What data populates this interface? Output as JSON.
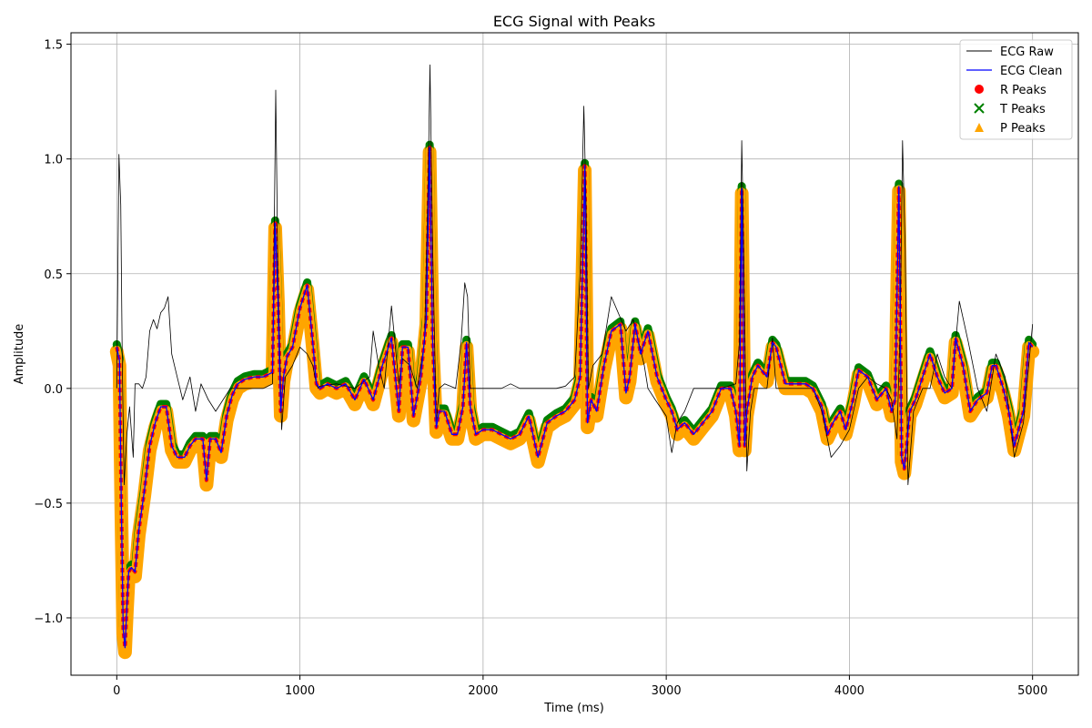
{
  "chart_data": {
    "type": "line",
    "title": "ECG Signal with Peaks",
    "xlabel": "Time (ms)",
    "ylabel": "Amplitude",
    "xlim": [
      -250,
      5250
    ],
    "ylim": [
      -1.25,
      1.55
    ],
    "xticks": [
      0,
      1000,
      2000,
      3000,
      4000,
      5000
    ],
    "xtick_labels": [
      "0",
      "1000",
      "2000",
      "3000",
      "4000",
      "5000"
    ],
    "yticks": [
      -1.0,
      -0.5,
      0.0,
      0.5,
      1.0,
      1.5
    ],
    "ytick_labels": [
      "−1.0",
      "−0.5",
      "0.0",
      "0.5",
      "1.0",
      "1.5"
    ],
    "grid": true,
    "legend_position": "top-right",
    "series": [
      {
        "name": "ECG Raw",
        "style": "line",
        "color": "#000000",
        "x": [
          0,
          12,
          22,
          30,
          40,
          55,
          70,
          90,
          100,
          120,
          140,
          160,
          180,
          200,
          220,
          240,
          260,
          280,
          300,
          330,
          360,
          400,
          430,
          460,
          500,
          540,
          580,
          620,
          650,
          700,
          800,
          850,
          860,
          868,
          880,
          900,
          920,
          960,
          1000,
          1040,
          1070,
          1090,
          1100,
          1110,
          1200,
          1300,
          1380,
          1400,
          1430,
          1460,
          1500,
          1540,
          1560,
          1600,
          1640,
          1680,
          1700,
          1710,
          1725,
          1745,
          1760,
          1790,
          1850,
          1880,
          1900,
          1915,
          1930,
          2000,
          2100,
          2150,
          2200,
          2300,
          2400,
          2450,
          2500,
          2530,
          2550,
          2562,
          2575,
          2600,
          2650,
          2700,
          2780,
          2820,
          2880,
          2900,
          2940,
          3000,
          3030,
          3060,
          3100,
          3150,
          3200,
          3300,
          3380,
          3400,
          3412,
          3425,
          3440,
          3460,
          3480,
          3550,
          3580,
          3600,
          3650,
          3700,
          3800,
          3850,
          3900,
          3950,
          4000,
          4050,
          4100,
          4150,
          4200,
          4230,
          4260,
          4278,
          4290,
          4305,
          4320,
          4350,
          4400,
          4440,
          4480,
          4520,
          4560,
          4575,
          4600,
          4650,
          4700,
          4750,
          4800,
          4850,
          4900,
          4950,
          5000
        ],
        "y": [
          0.0,
          1.02,
          0.8,
          0.1,
          -0.42,
          -0.2,
          -0.08,
          -0.3,
          0.02,
          0.02,
          0.0,
          0.05,
          0.25,
          0.3,
          0.26,
          0.33,
          0.35,
          0.4,
          0.15,
          0.05,
          -0.05,
          0.05,
          -0.1,
          0.02,
          -0.05,
          -0.1,
          -0.05,
          0.0,
          0.0,
          0.0,
          0.0,
          0.02,
          0.7,
          1.3,
          0.5,
          -0.18,
          0.05,
          0.1,
          0.18,
          0.15,
          0.1,
          0.02,
          0.0,
          0.01,
          0.02,
          0.0,
          0.05,
          0.25,
          0.1,
          0.0,
          0.36,
          0.02,
          0.13,
          0.1,
          0.0,
          0.2,
          0.9,
          1.41,
          0.6,
          -0.15,
          0.0,
          0.02,
          0.0,
          0.2,
          0.46,
          0.4,
          0.0,
          0.0,
          0.0,
          0.02,
          0.0,
          0.0,
          0.0,
          0.01,
          0.05,
          0.5,
          1.23,
          0.8,
          0.0,
          0.1,
          0.15,
          0.4,
          0.25,
          0.3,
          0.1,
          0.0,
          -0.05,
          -0.12,
          -0.28,
          -0.15,
          -0.1,
          0.0,
          0.0,
          0.0,
          0.02,
          0.2,
          1.08,
          0.5,
          -0.36,
          -0.1,
          0.0,
          0.0,
          0.22,
          0.0,
          0.0,
          0.0,
          0.0,
          -0.1,
          -0.3,
          -0.25,
          -0.18,
          0.0,
          0.05,
          0.02,
          0.0,
          -0.05,
          -0.22,
          0.3,
          1.08,
          0.6,
          -0.42,
          -0.1,
          0.0,
          0.0,
          0.15,
          0.05,
          0.0,
          0.15,
          0.38,
          0.2,
          0.0,
          -0.1,
          0.15,
          0.05,
          -0.3,
          -0.15,
          0.28
        ]
      },
      {
        "name": "ECG Clean",
        "style": "line",
        "color": "#0000ff",
        "x": [
          0,
          15,
          25,
          35,
          45,
          55,
          65,
          80,
          100,
          120,
          150,
          180,
          210,
          240,
          270,
          300,
          330,
          370,
          400,
          430,
          470,
          490,
          510,
          540,
          570,
          600,
          630,
          660,
          700,
          750,
          800,
          850,
          865,
          880,
          895,
          910,
          930,
          960,
          1000,
          1040,
          1070,
          1090,
          1110,
          1150,
          1200,
          1250,
          1300,
          1350,
          1400,
          1450,
          1500,
          1540,
          1560,
          1590,
          1620,
          1660,
          1690,
          1708,
          1725,
          1745,
          1760,
          1790,
          1830,
          1860,
          1890,
          1910,
          1930,
          1960,
          2000,
          2050,
          2100,
          2150,
          2200,
          2250,
          2300,
          2350,
          2400,
          2450,
          2500,
          2530,
          2555,
          2570,
          2590,
          2620,
          2660,
          2700,
          2750,
          2780,
          2800,
          2830,
          2860,
          2900,
          2950,
          3000,
          3030,
          3060,
          3100,
          3150,
          3200,
          3250,
          3300,
          3350,
          3380,
          3400,
          3412,
          3428,
          3440,
          3470,
          3500,
          3550,
          3580,
          3600,
          3650,
          3700,
          3760,
          3800,
          3850,
          3880,
          3910,
          3950,
          3980,
          4020,
          4050,
          4100,
          4150,
          4200,
          4230,
          4250,
          4270,
          4285,
          4300,
          4330,
          4360,
          4400,
          4440,
          4480,
          4520,
          4560,
          4580,
          4620,
          4660,
          4700,
          4750,
          4780,
          4800,
          4840,
          4870,
          4900,
          4950,
          4980,
          5000
        ],
        "y": [
          0.18,
          0.12,
          -0.5,
          -1.05,
          -1.13,
          -0.95,
          -0.8,
          -0.78,
          -0.8,
          -0.62,
          -0.45,
          -0.25,
          -0.15,
          -0.08,
          -0.08,
          -0.25,
          -0.3,
          -0.3,
          -0.25,
          -0.22,
          -0.22,
          -0.4,
          -0.22,
          -0.22,
          -0.28,
          -0.12,
          -0.03,
          0.02,
          0.04,
          0.05,
          0.05,
          0.07,
          0.72,
          0.4,
          -0.1,
          0.05,
          0.14,
          0.18,
          0.35,
          0.45,
          0.2,
          0.02,
          0.0,
          0.02,
          0.0,
          0.02,
          -0.05,
          0.04,
          -0.05,
          0.1,
          0.22,
          -0.1,
          0.18,
          0.18,
          -0.12,
          0.05,
          0.3,
          1.05,
          0.2,
          -0.17,
          -0.1,
          -0.1,
          -0.2,
          -0.2,
          -0.08,
          0.2,
          -0.08,
          -0.2,
          -0.18,
          -0.18,
          -0.2,
          -0.22,
          -0.2,
          -0.12,
          -0.3,
          -0.15,
          -0.12,
          -0.1,
          -0.05,
          0.05,
          0.97,
          -0.15,
          -0.05,
          -0.1,
          0.1,
          0.25,
          0.28,
          -0.02,
          0.05,
          0.28,
          0.15,
          0.25,
          0.05,
          -0.05,
          -0.1,
          -0.18,
          -0.15,
          -0.2,
          -0.15,
          -0.1,
          0.0,
          0.0,
          -0.1,
          -0.25,
          0.87,
          -0.25,
          -0.1,
          0.05,
          0.1,
          0.05,
          0.2,
          0.18,
          0.02,
          0.02,
          0.02,
          0.0,
          -0.08,
          -0.2,
          -0.15,
          -0.1,
          -0.18,
          -0.05,
          0.08,
          0.05,
          -0.05,
          0.0,
          -0.1,
          -0.05,
          0.88,
          -0.3,
          -0.35,
          -0.1,
          -0.05,
          0.05,
          0.15,
          0.05,
          -0.02,
          0.0,
          0.22,
          0.1,
          -0.1,
          -0.05,
          -0.02,
          0.1,
          0.1,
          0.0,
          -0.1,
          -0.25,
          -0.1,
          0.2,
          0.18
        ]
      },
      {
        "name": "R Peaks",
        "style": "marker-circle",
        "color": "#ff0000",
        "x": [],
        "y": []
      },
      {
        "name": "T Peaks",
        "style": "marker-x",
        "color": "#008000",
        "x": [],
        "y": []
      },
      {
        "name": "P Peaks",
        "style": "marker-triangle",
        "color": "#ffa500",
        "x": [],
        "y": []
      }
    ]
  }
}
